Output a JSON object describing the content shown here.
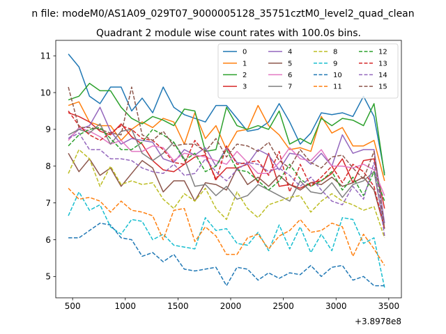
{
  "chart_data": {
    "type": "line",
    "suptitle": "n file: modeM0/AS1A09_029T07_9000005128_35751cztM0_level2_quad_clean",
    "title": "Quadrant 2 module wise count rates with 100.0s bins.",
    "xlabel": "",
    "ylabel": "",
    "x_offset_label": "+3.8978e8",
    "xlim": [
      340,
      3620
    ],
    "ylim": [
      4.42,
      11.42
    ],
    "x_ticks": [
      500,
      1000,
      1500,
      2000,
      2500,
      3000,
      3500
    ],
    "x_tick_labels": [
      "500",
      "1000",
      "1500",
      "2000",
      "2500",
      "3000",
      "3500"
    ],
    "y_ticks": [
      5,
      6,
      7,
      8,
      9,
      10,
      11
    ],
    "y_tick_labels": [
      "5",
      "6",
      "7",
      "8",
      "9",
      "10",
      "11"
    ],
    "x": [
      460,
      560,
      660,
      760,
      860,
      960,
      1060,
      1160,
      1260,
      1360,
      1460,
      1560,
      1660,
      1760,
      1860,
      1960,
      2060,
      2160,
      2260,
      2360,
      2460,
      2560,
      2660,
      2760,
      2860,
      2960,
      3060,
      3160,
      3260,
      3360,
      3460
    ],
    "legend_location": "top-right",
    "series": [
      {
        "name": "0",
        "color": "#1f77b4",
        "dash": "solid",
        "values": [
          11.05,
          10.7,
          9.9,
          9.7,
          10.15,
          10.15,
          9.5,
          9.85,
          9.45,
          10.15,
          9.6,
          9.4,
          9.3,
          9.2,
          9.65,
          9.65,
          9.3,
          8.95,
          9.0,
          9.2,
          9.7,
          9.2,
          8.6,
          8.9,
          9.45,
          9.4,
          9.45,
          9.35,
          9.9,
          9.35,
          7.8
        ]
      },
      {
        "name": "1",
        "color": "#ff7f0e",
        "dash": "solid",
        "values": [
          9.65,
          9.75,
          9.2,
          9.1,
          9.1,
          8.7,
          9.0,
          9.2,
          9.05,
          9.3,
          9.2,
          8.6,
          9.45,
          8.75,
          9.1,
          8.45,
          8.95,
          9.0,
          9.65,
          9.1,
          8.85,
          8.45,
          8.5,
          8.4,
          9.35,
          8.9,
          9.05,
          8.55,
          8.55,
          8.7,
          7.6
        ]
      },
      {
        "name": "2",
        "color": "#2ca02c",
        "dash": "solid",
        "values": [
          9.8,
          9.9,
          10.25,
          10.05,
          10.05,
          9.6,
          9.3,
          9.15,
          9.35,
          9.25,
          9.1,
          9.55,
          9.5,
          8.4,
          8.45,
          9.6,
          9.1,
          9.0,
          9.1,
          9.0,
          9.5,
          8.6,
          8.75,
          8.6,
          9.3,
          9.1,
          9.3,
          9.25,
          9.1,
          9.7,
          7.75
        ]
      },
      {
        "name": "3",
        "color": "#d62728",
        "dash": "solid",
        "values": [
          9.45,
          9.35,
          9.2,
          8.95,
          8.85,
          9.15,
          8.8,
          8.6,
          8.15,
          7.9,
          7.85,
          8.05,
          8.25,
          8.3,
          7.65,
          7.95,
          7.95,
          8.05,
          7.55,
          8.35,
          7.45,
          7.5,
          7.4,
          7.55,
          7.6,
          7.8,
          8.2,
          7.55,
          8.15,
          8.2,
          6.85
        ]
      },
      {
        "name": "4",
        "color": "#9467bd",
        "dash": "solid",
        "values": [
          8.75,
          9.0,
          9.1,
          9.6,
          8.95,
          8.6,
          8.75,
          8.7,
          8.65,
          8.2,
          8.1,
          8.45,
          8.3,
          8.5,
          8.0,
          8.5,
          8.1,
          8.05,
          8.45,
          8.3,
          7.9,
          8.35,
          8.3,
          8.05,
          8.35,
          8.0,
          8.85,
          8.35,
          8.45,
          8.45,
          6.45
        ]
      },
      {
        "name": "5",
        "color": "#8c564b",
        "dash": "solid",
        "values": [
          8.35,
          7.85,
          8.2,
          7.75,
          7.95,
          7.45,
          7.8,
          8.15,
          7.95,
          7.3,
          7.6,
          7.6,
          7.05,
          7.55,
          7.5,
          7.35,
          7.95,
          7.5,
          7.7,
          7.45,
          7.75,
          7.5,
          7.35,
          7.55,
          7.5,
          7.7,
          7.45,
          7.55,
          7.7,
          7.35,
          6.3
        ]
      },
      {
        "name": "6",
        "color": "#e377c2",
        "dash": "solid",
        "values": [
          8.7,
          9.05,
          8.95,
          8.8,
          8.6,
          8.7,
          8.4,
          8.4,
          8.55,
          8.5,
          8.15,
          8.35,
          8.3,
          8.25,
          8.15,
          8.05,
          8.4,
          8.1,
          7.8,
          7.8,
          8.1,
          8.5,
          8.2,
          8.15,
          8.45,
          8.0,
          8.0,
          7.95,
          8.05,
          7.9,
          7.2
        ]
      },
      {
        "name": "7",
        "color": "#7f7f7f",
        "dash": "solid",
        "values": [
          8.85,
          9.0,
          8.9,
          9.15,
          8.6,
          8.95,
          9.0,
          8.35,
          8.15,
          8.35,
          8.65,
          8.2,
          7.45,
          7.5,
          7.2,
          7.45,
          7.1,
          7.2,
          7.5,
          7.35,
          7.2,
          7.05,
          7.6,
          7.3,
          7.25,
          7.55,
          7.15,
          7.5,
          7.6,
          7.85,
          6.3
        ]
      },
      {
        "name": "8",
        "color": "#bcbd22",
        "dash": "dashed",
        "values": [
          7.8,
          8.45,
          8.2,
          7.45,
          8.0,
          7.5,
          7.6,
          7.5,
          7.55,
          7.1,
          6.85,
          7.25,
          7.05,
          7.4,
          6.85,
          6.55,
          7.3,
          6.85,
          6.6,
          6.95,
          7.05,
          7.15,
          7.2,
          6.75,
          7.05,
          7.25,
          7.05,
          6.95,
          6.8,
          6.9,
          6.05
        ]
      },
      {
        "name": "9",
        "color": "#17becf",
        "dash": "dashed",
        "values": [
          6.65,
          7.3,
          6.8,
          6.95,
          6.35,
          6.15,
          6.55,
          6.5,
          6.0,
          6.15,
          5.85,
          5.8,
          5.75,
          6.6,
          6.25,
          6.3,
          5.9,
          5.85,
          6.2,
          5.7,
          6.4,
          5.75,
          6.35,
          5.65,
          6.15,
          5.7,
          6.6,
          6.55,
          5.9,
          6.05,
          4.7
        ]
      },
      {
        "name": "10",
        "color": "#1f77b4",
        "dash": "dashed",
        "values": [
          6.05,
          6.05,
          6.25,
          6.45,
          6.4,
          6.05,
          6.0,
          5.55,
          5.65,
          5.4,
          5.6,
          5.2,
          5.15,
          5.2,
          5.25,
          4.75,
          5.25,
          5.2,
          4.9,
          5.1,
          4.95,
          5.1,
          5.05,
          5.3,
          5.0,
          5.25,
          5.3,
          4.9,
          5.0,
          4.75,
          4.75
        ]
      },
      {
        "name": "11",
        "color": "#ff7f0e",
        "dash": "dashed",
        "values": [
          7.4,
          7.1,
          7.15,
          7.05,
          6.75,
          7.05,
          6.8,
          6.75,
          6.65,
          6.0,
          6.8,
          6.85,
          5.95,
          6.35,
          6.1,
          5.6,
          5.6,
          6.05,
          6.15,
          5.75,
          6.1,
          6.25,
          6.55,
          6.2,
          6.25,
          6.45,
          6.35,
          5.55,
          6.15,
          5.75,
          5.3
        ]
      },
      {
        "name": "12",
        "color": "#2ca02c",
        "dash": "dashed",
        "values": [
          8.55,
          8.85,
          9.0,
          9.05,
          8.75,
          8.45,
          8.45,
          8.65,
          9.0,
          8.85,
          8.65,
          8.15,
          8.35,
          7.85,
          8.0,
          8.45,
          7.9,
          7.85,
          7.6,
          7.35,
          7.6,
          8.05,
          7.65,
          7.45,
          7.6,
          7.85,
          7.35,
          7.7,
          7.2,
          7.85,
          7.05
        ]
      },
      {
        "name": "13",
        "color": "#d62728",
        "dash": "dashed",
        "values": [
          9.5,
          9.1,
          8.85,
          8.7,
          8.9,
          9.1,
          9.0,
          8.75,
          8.7,
          8.45,
          8.1,
          8.05,
          8.7,
          8.35,
          7.6,
          8.55,
          8.05,
          8.1,
          8.15,
          7.75,
          8.4,
          7.3,
          8.05,
          7.45,
          7.7,
          8.0,
          7.55,
          8.05,
          7.85,
          7.45,
          6.3
        ]
      },
      {
        "name": "14",
        "color": "#9467bd",
        "dash": "dashed",
        "values": [
          8.75,
          8.9,
          8.45,
          8.45,
          8.2,
          8.2,
          8.15,
          7.95,
          7.85,
          7.8,
          8.05,
          7.75,
          7.8,
          8.2,
          7.85,
          7.6,
          7.9,
          8.1,
          8.05,
          7.85,
          7.95,
          7.75,
          7.45,
          7.7,
          7.35,
          7.05,
          6.95,
          7.45,
          7.1,
          8.1,
          6.1
        ]
      },
      {
        "name": "15",
        "color": "#8c564b",
        "dash": "dashed",
        "values": [
          10.15,
          9.05,
          9.05,
          9.0,
          8.9,
          8.85,
          10.15,
          8.85,
          8.7,
          8.95,
          8.55,
          8.6,
          8.6,
          8.4,
          8.75,
          8.25,
          8.6,
          8.55,
          8.4,
          8.65,
          8.15,
          7.95,
          8.45,
          8.1,
          7.95,
          8.25,
          8.3,
          7.95,
          7.65,
          8.4,
          6.3
        ]
      }
    ]
  }
}
